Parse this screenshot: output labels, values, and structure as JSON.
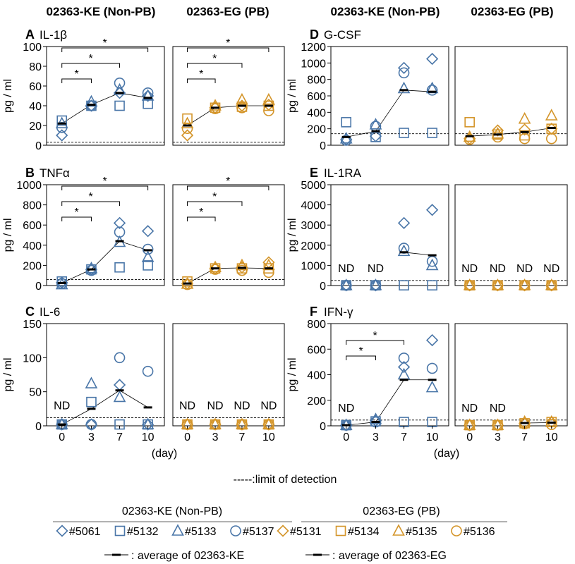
{
  "colors": {
    "ke": "#4a76a8",
    "eg": "#d4952a",
    "avg": "#000000",
    "lod": "#000000"
  },
  "column_headers": [
    "02363-KE (Non-PB)",
    "02363-EG (PB)",
    "02363-KE (Non-PB)",
    "02363-EG (PB)"
  ],
  "axis": {
    "ylabel": "pg / ml",
    "xlabel": "(day)",
    "days": [
      0,
      3,
      7,
      10
    ]
  },
  "lod_note": "-----:limit of detection",
  "nd_label": "ND",
  "star": "*",
  "legend": {
    "ke_title": "02363-KE (Non-PB)",
    "eg_title": "02363-EG (PB)",
    "ke_items": [
      {
        "marker": "diamond",
        "label": "#5061"
      },
      {
        "marker": "square",
        "label": "#5132"
      },
      {
        "marker": "triangle",
        "label": "#5133"
      },
      {
        "marker": "circle",
        "label": "#5137"
      }
    ],
    "eg_items": [
      {
        "marker": "diamond",
        "label": "#5131"
      },
      {
        "marker": "square",
        "label": "#5134"
      },
      {
        "marker": "triangle",
        "label": "#5135"
      },
      {
        "marker": "circle",
        "label": "#5136"
      }
    ],
    "ke_avg": ": average of 02363-KE",
    "eg_avg": ": average of 02363-EG"
  },
  "chart_data": [
    {
      "type": "scatter",
      "letter": "A",
      "title": "IL-1β",
      "ylim": [
        0,
        100
      ],
      "yticks": [
        0,
        20,
        40,
        60,
        80,
        100
      ],
      "lod": 3,
      "groups": [
        {
          "group": "ke",
          "nd": [],
          "series": [
            {
              "name": "#5061",
              "marker": "diamond",
              "y": [
                10,
                40,
                53,
                50
              ]
            },
            {
              "name": "#5132",
              "marker": "square",
              "y": [
                25,
                40,
                40,
                42
              ]
            },
            {
              "name": "#5133",
              "marker": "triangle",
              "y": [
                22,
                44,
                56,
                50
              ]
            },
            {
              "name": "#5137",
              "marker": "circle",
              "y": [
                18,
                40,
                63,
                53
              ]
            }
          ],
          "average": [
            22,
            41,
            53,
            48
          ],
          "sig": [
            [
              0,
              3
            ],
            [
              0,
              7
            ],
            [
              0,
              10
            ]
          ]
        },
        {
          "group": "eg",
          "nd": [],
          "series": [
            {
              "name": "#5131",
              "marker": "diamond",
              "y": [
                10,
                38,
                40,
                41
              ]
            },
            {
              "name": "#5134",
              "marker": "square",
              "y": [
                27,
                38,
                39,
                40
              ]
            },
            {
              "name": "#5135",
              "marker": "triangle",
              "y": [
                22,
                40,
                46,
                46
              ]
            },
            {
              "name": "#5136",
              "marker": "circle",
              "y": [
                17,
                37,
                38,
                35
              ]
            }
          ],
          "average": [
            20,
            38,
            40,
            40
          ],
          "sig": [
            [
              0,
              3
            ],
            [
              0,
              7
            ],
            [
              0,
              10
            ]
          ]
        }
      ]
    },
    {
      "type": "scatter",
      "letter": "B",
      "title": "TNFα",
      "ylim": [
        0,
        1000
      ],
      "yticks": [
        0,
        200,
        400,
        600,
        800,
        1000
      ],
      "lod": 60,
      "groups": [
        {
          "group": "ke",
          "nd": [],
          "series": [
            {
              "name": "#5061",
              "marker": "diamond",
              "y": [
                30,
                160,
                620,
                540
              ]
            },
            {
              "name": "#5132",
              "marker": "square",
              "y": [
                40,
                160,
                180,
                200
              ]
            },
            {
              "name": "#5133",
              "marker": "triangle",
              "y": [
                10,
                170,
                430,
                280
              ]
            },
            {
              "name": "#5137",
              "marker": "circle",
              "y": [
                20,
                150,
                530,
                360
              ]
            }
          ],
          "average": [
            25,
            160,
            440,
            350
          ],
          "sig": [
            [
              0,
              3
            ],
            [
              0,
              7
            ],
            [
              0,
              10
            ]
          ]
        },
        {
          "group": "eg",
          "nd": [],
          "series": [
            {
              "name": "#5131",
              "marker": "diamond",
              "y": [
                20,
                170,
                180,
                230
              ]
            },
            {
              "name": "#5134",
              "marker": "square",
              "y": [
                40,
                170,
                170,
                170
              ]
            },
            {
              "name": "#5135",
              "marker": "triangle",
              "y": [
                15,
                180,
                200,
                200
              ]
            },
            {
              "name": "#5136",
              "marker": "circle",
              "y": [
                10,
                160,
                150,
                130
              ]
            }
          ],
          "average": [
            20,
            170,
            175,
            170
          ],
          "sig": [
            [
              0,
              3
            ],
            [
              0,
              7
            ],
            [
              0,
              10
            ]
          ]
        }
      ]
    },
    {
      "type": "scatter",
      "letter": "C",
      "title": "IL-6",
      "ylim": [
        0,
        150
      ],
      "yticks": [
        0,
        50,
        100,
        150
      ],
      "lod": 12,
      "groups": [
        {
          "group": "ke",
          "nd": [
            0
          ],
          "series": [
            {
              "name": "#5061",
              "marker": "diamond",
              "y": [
                2,
                2,
                60,
                2
              ]
            },
            {
              "name": "#5132",
              "marker": "square",
              "y": [
                2,
                35,
                2,
                2
              ]
            },
            {
              "name": "#5133",
              "marker": "triangle",
              "y": [
                2,
                62,
                42,
                2
              ]
            },
            {
              "name": "#5137",
              "marker": "circle",
              "y": [
                2,
                2,
                100,
                80
              ]
            }
          ],
          "average": [
            2,
            25,
            52,
            27
          ],
          "sig": []
        },
        {
          "group": "eg",
          "nd": [
            0,
            1,
            2,
            3
          ],
          "series": [
            {
              "name": "#5131",
              "marker": "diamond",
              "y": [
                2,
                2,
                2,
                2
              ]
            },
            {
              "name": "#5134",
              "marker": "square",
              "y": [
                2,
                2,
                2,
                2
              ]
            },
            {
              "name": "#5135",
              "marker": "triangle",
              "y": [
                2,
                2,
                2,
                2
              ]
            },
            {
              "name": "#5136",
              "marker": "circle",
              "y": [
                2,
                2,
                2,
                2
              ]
            }
          ],
          "average": [
            null,
            null,
            null,
            null
          ],
          "sig": []
        }
      ]
    },
    {
      "type": "scatter",
      "letter": "D",
      "title": "G-CSF",
      "ylim": [
        0,
        1200
      ],
      "yticks": [
        0,
        200,
        400,
        600,
        800,
        1000,
        1200
      ],
      "lod": 140,
      "groups": [
        {
          "group": "ke",
          "nd": [],
          "series": [
            {
              "name": "#5061",
              "marker": "diamond",
              "y": [
                70,
                110,
                940,
                1050
              ]
            },
            {
              "name": "#5132",
              "marker": "square",
              "y": [
                280,
                100,
                150,
                150
              ]
            },
            {
              "name": "#5133",
              "marker": "triangle",
              "y": [
                80,
                250,
                690,
                690
              ]
            },
            {
              "name": "#5137",
              "marker": "circle",
              "y": [
                60,
                230,
                880,
                670
              ]
            }
          ],
          "average": [
            100,
            170,
            670,
            650
          ],
          "sig": []
        },
        {
          "group": "eg",
          "nd": [],
          "series": [
            {
              "name": "#5131",
              "marker": "diamond",
              "y": [
                80,
                180,
                190,
                200
              ]
            },
            {
              "name": "#5134",
              "marker": "square",
              "y": [
                280,
                130,
                120,
                200
              ]
            },
            {
              "name": "#5135",
              "marker": "triangle",
              "y": [
                100,
                140,
                320,
                360
              ]
            },
            {
              "name": "#5136",
              "marker": "circle",
              "y": [
                70,
                100,
                80,
                80
              ]
            }
          ],
          "average": [
            110,
            130,
            160,
            210
          ],
          "sig": []
        }
      ]
    },
    {
      "type": "scatter",
      "letter": "E",
      "title": "IL-1RA",
      "ylim": [
        0,
        5000
      ],
      "yticks": [
        0,
        1000,
        2000,
        3000,
        4000,
        5000
      ],
      "lod": 250,
      "groups": [
        {
          "group": "ke",
          "nd": [
            0,
            1
          ],
          "series": [
            {
              "name": "#5061",
              "marker": "diamond",
              "y": [
                10,
                10,
                3100,
                3750
              ]
            },
            {
              "name": "#5132",
              "marker": "square",
              "y": [
                10,
                10,
                10,
                10
              ]
            },
            {
              "name": "#5133",
              "marker": "triangle",
              "y": [
                10,
                10,
                1700,
                1000
              ]
            },
            {
              "name": "#5137",
              "marker": "circle",
              "y": [
                10,
                10,
                1850,
                1200
              ]
            }
          ],
          "average": [
            null,
            null,
            1650,
            1500
          ],
          "sig": []
        },
        {
          "group": "eg",
          "nd": [
            0,
            1,
            2,
            3
          ],
          "series": [
            {
              "name": "#5131",
              "marker": "diamond",
              "y": [
                10,
                10,
                10,
                10
              ]
            },
            {
              "name": "#5134",
              "marker": "square",
              "y": [
                10,
                10,
                10,
                10
              ]
            },
            {
              "name": "#5135",
              "marker": "triangle",
              "y": [
                10,
                10,
                10,
                10
              ]
            },
            {
              "name": "#5136",
              "marker": "circle",
              "y": [
                10,
                10,
                10,
                10
              ]
            }
          ],
          "average": [
            null,
            null,
            null,
            null
          ],
          "sig": []
        }
      ]
    },
    {
      "type": "scatter",
      "letter": "F",
      "title": "IFN-γ",
      "ylim": [
        0,
        800
      ],
      "yticks": [
        0,
        200,
        400,
        600,
        800
      ],
      "lod": 45,
      "groups": [
        {
          "group": "ke",
          "nd": [
            0
          ],
          "series": [
            {
              "name": "#5061",
              "marker": "diamond",
              "y": [
                5,
                40,
                460,
                670
              ]
            },
            {
              "name": "#5132",
              "marker": "square",
              "y": [
                5,
                35,
                30,
                30
              ]
            },
            {
              "name": "#5133",
              "marker": "triangle",
              "y": [
                5,
                50,
                400,
                300
              ]
            },
            {
              "name": "#5137",
              "marker": "circle",
              "y": [
                5,
                30,
                530,
                450
              ]
            }
          ],
          "average": [
            5,
            30,
            360,
            360
          ],
          "sig": [
            [
              0,
              3
            ],
            [
              0,
              7
            ]
          ]
        },
        {
          "group": "eg",
          "nd": [
            0,
            1
          ],
          "series": [
            {
              "name": "#5131",
              "marker": "diamond",
              "y": [
                5,
                5,
                20,
                30
              ]
            },
            {
              "name": "#5134",
              "marker": "square",
              "y": [
                5,
                5,
                20,
                30
              ]
            },
            {
              "name": "#5135",
              "marker": "triangle",
              "y": [
                5,
                5,
                30,
                30
              ]
            },
            {
              "name": "#5136",
              "marker": "circle",
              "y": [
                5,
                5,
                15,
                10
              ]
            }
          ],
          "average": [
            null,
            null,
            22,
            25
          ],
          "sig": []
        }
      ]
    }
  ]
}
